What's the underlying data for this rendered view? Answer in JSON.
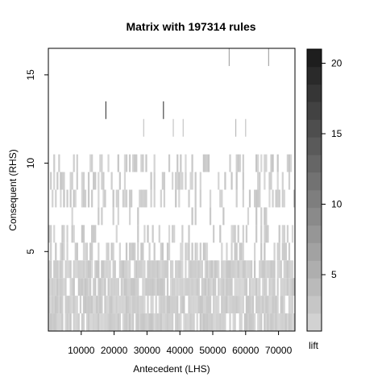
{
  "chart_data": {
    "type": "heatmap",
    "title": "Matrix with 197314 rules",
    "xlabel": "Antecedent (LHS)",
    "ylabel": "Consequent (RHS)",
    "xlim": [
      0,
      75000
    ],
    "ylim": [
      0.5,
      16.5
    ],
    "xticks": [
      10000,
      20000,
      30000,
      40000,
      50000,
      60000,
      70000
    ],
    "yticks": [
      5,
      10,
      15
    ],
    "colorbar": {
      "label": "lift",
      "range": [
        1,
        21
      ],
      "ticks": [
        5,
        10,
        15,
        20
      ],
      "low_color": "#d8d8d8",
      "high_color": "#181818"
    },
    "rows": [
      {
        "rhs": 1,
        "density": 0.85,
        "lift_range": [
          1,
          3
        ]
      },
      {
        "rhs": 2,
        "density": 0.85,
        "lift_range": [
          1,
          3
        ]
      },
      {
        "rhs": 3,
        "density": 0.85,
        "lift_range": [
          1,
          3
        ]
      },
      {
        "rhs": 4,
        "density": 0.85,
        "lift_range": [
          1,
          3
        ]
      },
      {
        "rhs": 5,
        "density": 0.35,
        "lift_range": [
          1,
          3
        ]
      },
      {
        "rhs": 6,
        "density": 0.3,
        "lift_range": [
          1,
          3
        ]
      },
      {
        "rhs": 7,
        "density": 0.1,
        "lift_range": [
          1,
          3
        ]
      },
      {
        "rhs": 8,
        "density": 0.4,
        "lift_range": [
          1,
          3
        ]
      },
      {
        "rhs": 9,
        "density": 0.3,
        "lift_range": [
          1,
          3
        ]
      },
      {
        "rhs": 10,
        "density": 0.25,
        "lift_range": [
          1,
          3
        ]
      }
    ],
    "sparse_points": [
      {
        "x": 29000,
        "y": 12,
        "lift": 3
      },
      {
        "x": 38000,
        "y": 12,
        "lift": 3
      },
      {
        "x": 41000,
        "y": 12,
        "lift": 3
      },
      {
        "x": 57000,
        "y": 12,
        "lift": 4
      },
      {
        "x": 60000,
        "y": 12,
        "lift": 3
      },
      {
        "x": 17500,
        "y": 13,
        "lift": 16
      },
      {
        "x": 35000,
        "y": 13,
        "lift": 16
      },
      {
        "x": 55000,
        "y": 16,
        "lift": 6
      },
      {
        "x": 67000,
        "y": 16,
        "lift": 6
      }
    ]
  }
}
